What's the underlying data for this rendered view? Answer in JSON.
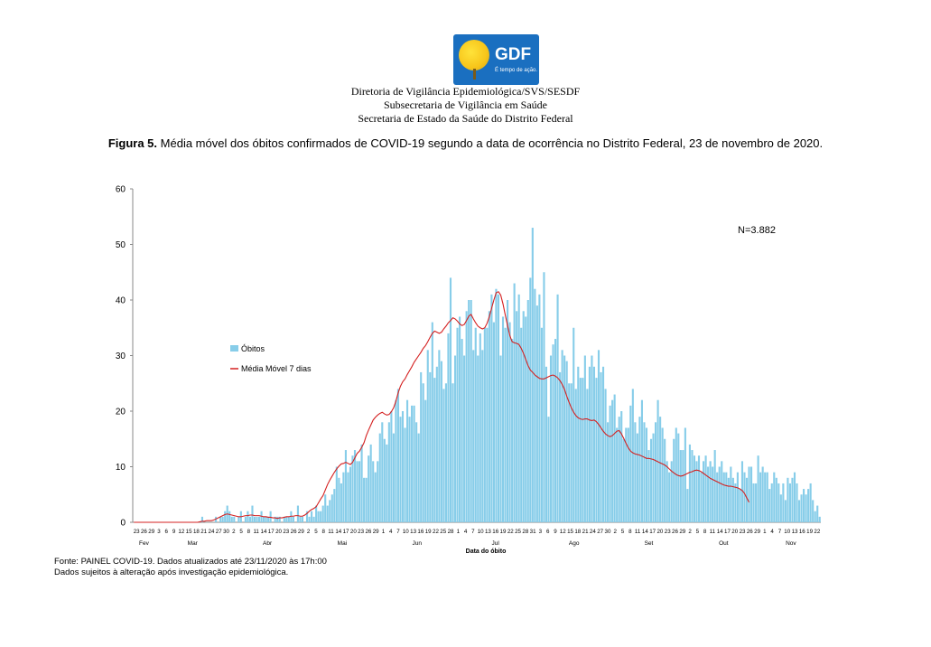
{
  "logo": {
    "name": "GDF",
    "tagline": "É tempo de ação."
  },
  "header": {
    "line1": "Diretoria de Vigilância Epidemiológica/SVS/SESDF",
    "line2": "Subsecretaria de Vigilância em Saúde",
    "line3": "Secretaria de Estado da Saúde do Distrito Federal"
  },
  "figure": {
    "label": "Figura 5.",
    "caption": "Média móvel dos óbitos confirmados de COVID-19 segundo a data de ocorrência no Distrito Federal, 23 de novembro de 2020."
  },
  "chart_data": {
    "type": "bar",
    "annotation": "N=3.882",
    "ylim": [
      0,
      60
    ],
    "yticks": [
      0,
      10,
      20,
      30,
      40,
      50,
      60
    ],
    "xlabel": "Data do óbito",
    "months": [
      "Fev",
      "Mar",
      "Abr",
      "Mai",
      "Jun",
      "Jul",
      "Ago",
      "Set",
      "Out",
      "Nov"
    ],
    "day_ticks": [
      "23",
      "26",
      "29",
      "3",
      "6",
      "9",
      "12",
      "15",
      "18",
      "21",
      "24",
      "27",
      "30",
      "2",
      "5",
      "8",
      "11",
      "14",
      "17",
      "20",
      "23",
      "26",
      "29",
      "2",
      "5",
      "8",
      "11",
      "14",
      "17",
      "20",
      "23",
      "26",
      "29",
      "1",
      "4",
      "7",
      "10",
      "13",
      "16",
      "19",
      "22",
      "25",
      "28",
      "1",
      "4",
      "7",
      "10",
      "13",
      "16",
      "19",
      "22",
      "25",
      "28",
      "31",
      "3",
      "6",
      "9",
      "12",
      "15",
      "18",
      "21",
      "24",
      "27",
      "30",
      "2",
      "5",
      "8",
      "11",
      "14",
      "17",
      "20",
      "23",
      "26",
      "29",
      "2",
      "5",
      "8",
      "11",
      "14",
      "17",
      "20",
      "23",
      "26",
      "29",
      "1",
      "4",
      "7",
      "10",
      "13",
      "16",
      "19",
      "22"
    ],
    "grid": false,
    "legend_position": "left",
    "series": [
      {
        "name": "Óbitos",
        "type": "bar",
        "color": "#87cde9",
        "values": [
          0,
          0,
          0,
          0,
          0,
          0,
          0,
          0,
          0,
          0,
          0,
          0,
          0,
          0,
          0,
          0,
          0,
          0,
          0,
          0,
          0,
          0,
          0,
          0,
          0,
          0,
          0,
          0,
          0,
          0,
          1,
          0,
          0,
          0,
          0,
          0,
          1,
          0,
          1,
          1,
          2,
          3,
          2,
          1,
          1,
          0,
          1,
          2,
          0,
          1,
          2,
          1,
          3,
          1,
          1,
          1,
          2,
          1,
          1,
          1,
          2,
          0,
          1,
          1,
          1,
          0,
          1,
          1,
          1,
          2,
          1,
          0,
          3,
          1,
          1,
          0,
          2,
          1,
          2,
          1,
          3,
          2,
          2,
          3,
          5,
          3,
          4,
          5,
          6,
          10,
          8,
          7,
          9,
          13,
          9,
          10,
          12,
          13,
          11,
          11,
          14,
          8,
          8,
          12,
          14,
          11,
          9,
          11,
          16,
          18,
          15,
          14,
          18,
          20,
          16,
          22,
          24,
          19,
          20,
          17,
          22,
          19,
          21,
          21,
          18,
          16,
          27,
          25,
          22,
          31,
          27,
          36,
          26,
          28,
          31,
          29,
          24,
          25,
          34,
          44,
          25,
          30,
          35,
          37,
          33,
          30,
          38,
          40,
          40,
          31,
          35,
          30,
          34,
          31,
          35,
          35,
          38,
          41,
          36,
          42,
          41,
          30,
          37,
          35,
          40,
          36,
          33,
          43,
          38,
          41,
          35,
          38,
          37,
          40,
          44,
          53,
          42,
          39,
          41,
          35,
          45,
          28,
          19,
          30,
          32,
          33,
          41,
          27,
          31,
          30,
          29,
          25,
          25,
          35,
          24,
          28,
          26,
          26,
          30,
          24,
          28,
          30,
          28,
          26,
          31,
          27,
          28,
          24,
          18,
          21,
          22,
          23,
          17,
          19,
          20,
          15,
          17,
          17,
          21,
          24,
          18,
          16,
          19,
          22,
          18,
          17,
          13,
          15,
          16,
          18,
          22,
          19,
          17,
          15,
          11,
          9,
          11,
          15,
          17,
          16,
          13,
          13,
          17,
          6,
          14,
          13,
          12,
          11,
          12,
          9,
          11,
          12,
          10,
          11,
          10,
          13,
          9,
          10,
          11,
          9,
          9,
          8,
          10,
          8,
          7,
          9,
          6,
          11,
          9,
          8,
          10,
          10,
          7,
          7,
          12,
          9,
          10,
          9,
          9,
          6,
          7,
          9,
          8,
          7,
          5,
          7,
          4,
          8,
          7,
          8,
          9,
          7,
          4,
          5,
          6,
          5,
          6,
          7,
          4,
          2,
          3,
          1
        ]
      },
      {
        "name": "Média Móvel  7 dias",
        "type": "line",
        "color": "#d42020",
        "values": [
          0,
          0,
          0,
          0,
          0,
          0,
          0,
          0,
          0,
          0,
          0,
          0,
          0,
          0,
          0,
          0,
          0,
          0,
          0,
          0,
          0,
          0,
          0,
          0,
          0,
          0,
          0,
          0,
          0,
          0.1,
          0.2,
          0.2,
          0.3,
          0.3,
          0.3,
          0.4,
          0.6,
          0.8,
          1.0,
          1.2,
          1.4,
          1.5,
          1.4,
          1.3,
          1.2,
          1.1,
          1.0,
          1.0,
          1.1,
          1.2,
          1.2,
          1.3,
          1.3,
          1.2,
          1.2,
          1.2,
          1.1,
          1.0,
          1.0,
          0.9,
          0.9,
          0.8,
          0.8,
          0.7,
          0.8,
          0.8,
          0.9,
          1.0,
          1.0,
          1.1,
          1.1,
          1.2,
          1.2,
          1.1,
          1.1,
          1.3,
          1.6,
          2.0,
          2.3,
          2.5,
          2.8,
          3.5,
          4.2,
          4.8,
          5.8,
          6.8,
          7.6,
          8.3,
          9.0,
          9.6,
          10.1,
          10.5,
          10.6,
          10.8,
          10.6,
          10.4,
          10.8,
          11.6,
          12.4,
          12.8,
          13.5,
          14.3,
          15.6,
          16.6,
          17.5,
          18.4,
          18.9,
          19.3,
          19.6,
          19.8,
          19.5,
          19.3,
          19.4,
          19.9,
          20.6,
          21.8,
          23.3,
          24.5,
          25.3,
          25.8,
          26.6,
          27.3,
          28.0,
          28.8,
          29.4,
          30.0,
          30.6,
          31.3,
          31.8,
          32.5,
          33.3,
          34.0,
          34.4,
          34.2,
          34.0,
          34.2,
          34.8,
          35.3,
          35.9,
          36.3,
          36.8,
          36.6,
          36.2,
          35.7,
          35.4,
          35.6,
          36.3,
          37.1,
          37.4,
          36.6,
          35.9,
          35.3,
          35.0,
          34.8,
          35.0,
          35.8,
          37.0,
          38.5,
          40.0,
          41.3,
          41.5,
          40.9,
          39.3,
          37.3,
          35.4,
          33.6,
          32.5,
          32.3,
          32.2,
          32.0,
          31.3,
          30.4,
          29.3,
          28.2,
          27.4,
          27.0,
          26.5,
          26.2,
          25.9,
          25.8,
          25.8,
          26.0,
          26.2,
          26.4,
          26.5,
          26.3,
          26.0,
          25.5,
          24.8,
          23.9,
          22.7,
          21.6,
          20.6,
          19.8,
          19.2,
          18.8,
          18.6,
          18.5,
          18.6,
          18.6,
          18.4,
          18.3,
          18.4,
          18.1,
          17.6,
          17.0,
          16.4,
          15.9,
          15.6,
          15.4,
          15.6,
          16.0,
          16.4,
          16.5,
          15.9,
          15.1,
          14.2,
          13.4,
          12.8,
          12.5,
          12.3,
          12.2,
          12.1,
          11.9,
          11.7,
          11.5,
          11.5,
          11.4,
          11.3,
          11.1,
          10.9,
          10.7,
          10.5,
          10.3,
          10.0,
          9.6,
          9.2,
          8.9,
          8.6,
          8.4,
          8.3,
          8.4,
          8.6,
          8.8,
          9.0,
          9.1,
          9.3,
          9.4,
          9.3,
          9.1,
          8.8,
          8.5,
          8.2,
          7.9,
          7.7,
          7.5,
          7.3,
          7.1,
          6.9,
          6.7,
          6.6,
          6.5,
          6.5,
          6.4,
          6.3,
          6.2,
          6.0,
          5.7,
          5.2,
          4.4,
          3.6
        ]
      }
    ]
  },
  "source": {
    "line1": "Fonte: PAINEL COVID-19. Dados atualizados até 23/11/2020 às 17h:00",
    "line2": "Dados sujeitos à alteração após investigação epidemiológica."
  }
}
